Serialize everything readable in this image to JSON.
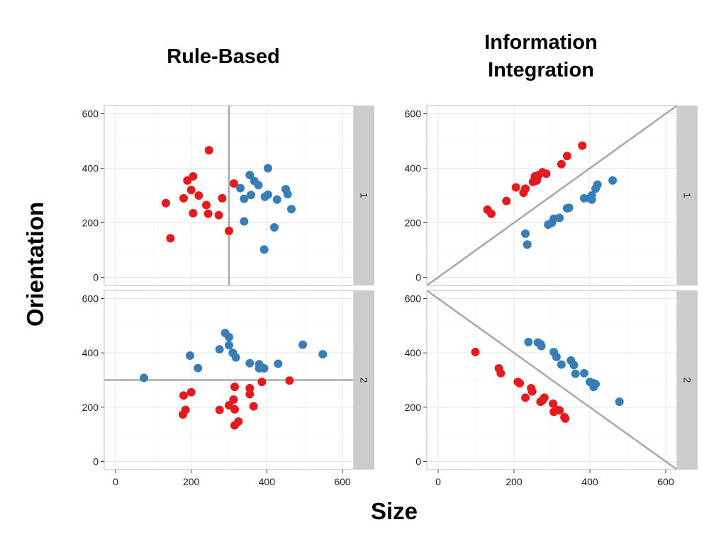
{
  "titles": {
    "rule_based": "Rule-Based",
    "information_integration": [
      "Information",
      "Integration"
    ]
  },
  "axes": {
    "x_title": "Size",
    "y_title": "Orientation"
  },
  "colors": {
    "red": "#e41a1c",
    "blue": "#377eb8",
    "boundary": "#aaaaaa",
    "strip": "#cccccc"
  },
  "chart_data": [
    {
      "type": "scatter",
      "panel": "Rule-Based, facet 1",
      "facet_label": "1",
      "xlim": [
        -30,
        630
      ],
      "ylim": [
        -30,
        630
      ],
      "xticks": [
        0,
        200,
        400,
        600
      ],
      "yticks": [
        0,
        200,
        400,
        600
      ],
      "boundary": {
        "kind": "vertical",
        "x": 300
      },
      "series": [
        {
          "color": "red",
          "points": [
            [
              247,
              466
            ],
            [
              205,
              370
            ],
            [
              190,
              355
            ],
            [
              200,
              320
            ],
            [
              180,
              290
            ],
            [
              220,
              300
            ],
            [
              282,
              290
            ],
            [
              133,
              272
            ],
            [
              240,
              265
            ],
            [
              205,
              235
            ],
            [
              245,
              233
            ],
            [
              273,
              228
            ],
            [
              313,
              344
            ],
            [
              145,
              143
            ],
            [
              300,
              170
            ]
          ]
        },
        {
          "color": "blue",
          "points": [
            [
              403,
              400
            ],
            [
              355,
              375
            ],
            [
              367,
              353
            ],
            [
              378,
              338
            ],
            [
              330,
              327
            ],
            [
              358,
              302
            ],
            [
              340,
              288
            ],
            [
              403,
              303
            ],
            [
              395,
              295
            ],
            [
              450,
              323
            ],
            [
              455,
              305
            ],
            [
              427,
              285
            ],
            [
              465,
              250
            ],
            [
              340,
              205
            ],
            [
              420,
              183
            ],
            [
              393,
              102
            ]
          ]
        }
      ]
    },
    {
      "type": "scatter",
      "panel": "Information Integration, facet 1",
      "facet_label": "1",
      "xlim": [
        -30,
        630
      ],
      "ylim": [
        -30,
        630
      ],
      "xticks": [
        0,
        200,
        400,
        600
      ],
      "yticks": [
        0,
        200,
        400,
        600
      ],
      "boundary": {
        "kind": "line",
        "from": [
          -30,
          -30
        ],
        "to": [
          630,
          630
        ]
      },
      "series": [
        {
          "color": "red",
          "points": [
            [
              380,
              483
            ],
            [
              340,
              445
            ],
            [
              325,
              415
            ],
            [
              285,
              380
            ],
            [
              275,
              385
            ],
            [
              265,
              375
            ],
            [
              255,
              370
            ],
            [
              260,
              355
            ],
            [
              250,
              350
            ],
            [
              230,
              325
            ],
            [
              225,
              310
            ],
            [
              205,
              330
            ],
            [
              180,
              280
            ],
            [
              130,
              248
            ],
            [
              140,
              233
            ]
          ]
        },
        {
          "color": "blue",
          "points": [
            [
              460,
              355
            ],
            [
              420,
              340
            ],
            [
              415,
              325
            ],
            [
              405,
              300
            ],
            [
              400,
              290
            ],
            [
              385,
              290
            ],
            [
              405,
              285
            ],
            [
              345,
              255
            ],
            [
              340,
              253
            ],
            [
              320,
              218
            ],
            [
              305,
              215
            ],
            [
              300,
              200
            ],
            [
              290,
              193
            ],
            [
              230,
              160
            ],
            [
              235,
              120
            ]
          ]
        }
      ]
    },
    {
      "type": "scatter",
      "panel": "Rule-Based, facet 2",
      "facet_label": "2",
      "xlim": [
        -30,
        630
      ],
      "ylim": [
        -30,
        630
      ],
      "xticks": [
        0,
        200,
        400,
        600
      ],
      "yticks": [
        0,
        200,
        400,
        600
      ],
      "boundary": {
        "kind": "horizontal",
        "y": 300
      },
      "series": [
        {
          "color": "red",
          "points": [
            [
              460,
              298
            ],
            [
              387,
              293
            ],
            [
              315,
              275
            ],
            [
              355,
              270
            ],
            [
              355,
              248
            ],
            [
              312,
              228
            ],
            [
              200,
              255
            ],
            [
              180,
              243
            ],
            [
              300,
              207
            ],
            [
              365,
              203
            ],
            [
              275,
              190
            ],
            [
              315,
              192
            ],
            [
              185,
              190
            ],
            [
              178,
              173
            ],
            [
              325,
              147
            ],
            [
              315,
              133
            ]
          ]
        },
        {
          "color": "blue",
          "points": [
            [
              290,
              473
            ],
            [
              300,
              458
            ],
            [
              495,
              430
            ],
            [
              548,
              395
            ],
            [
              300,
              428
            ],
            [
              275,
              413
            ],
            [
              310,
              400
            ],
            [
              318,
              383
            ],
            [
              197,
              390
            ],
            [
              218,
              344
            ],
            [
              355,
              362
            ],
            [
              380,
              358
            ],
            [
              430,
              360
            ],
            [
              380,
              343
            ],
            [
              393,
              343
            ],
            [
              75,
              308
            ]
          ]
        }
      ]
    },
    {
      "type": "scatter",
      "panel": "Information Integration, facet 2",
      "facet_label": "2",
      "xlim": [
        -30,
        630
      ],
      "ylim": [
        -30,
        630
      ],
      "xticks": [
        0,
        200,
        400,
        600
      ],
      "yticks": [
        0,
        200,
        400,
        600
      ],
      "boundary": {
        "kind": "line",
        "from": [
          -30,
          630
        ],
        "to": [
          630,
          -30
        ]
      },
      "series": [
        {
          "color": "red",
          "points": [
            [
              98,
              403
            ],
            [
              160,
              343
            ],
            [
              165,
              325
            ],
            [
              210,
              293
            ],
            [
              215,
              288
            ],
            [
              245,
              270
            ],
            [
              248,
              258
            ],
            [
              280,
              235
            ],
            [
              230,
              235
            ],
            [
              275,
              225
            ],
            [
              270,
              220
            ],
            [
              303,
              213
            ],
            [
              313,
              190
            ],
            [
              305,
              183
            ],
            [
              320,
              188
            ],
            [
              333,
              163
            ],
            [
              335,
              158
            ]
          ]
        },
        {
          "color": "blue",
          "points": [
            [
              238,
              440
            ],
            [
              263,
              438
            ],
            [
              270,
              432
            ],
            [
              272,
              425
            ],
            [
              305,
              403
            ],
            [
              312,
              385
            ],
            [
              325,
              357
            ],
            [
              350,
              372
            ],
            [
              358,
              355
            ],
            [
              362,
              323
            ],
            [
              385,
              325
            ],
            [
              400,
              293
            ],
            [
              410,
              288
            ],
            [
              410,
              275
            ],
            [
              415,
              285
            ],
            [
              478,
              220
            ]
          ]
        }
      ]
    }
  ]
}
